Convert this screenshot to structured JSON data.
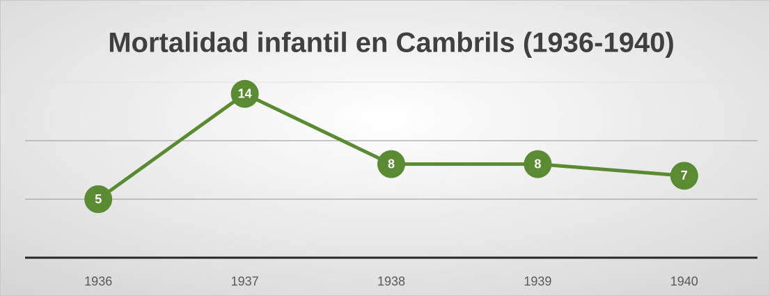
{
  "chart_data": {
    "type": "line",
    "title": "Mortalidad infantil en Cambrils (1936-1940)",
    "categories": [
      "1936",
      "1937",
      "1938",
      "1939",
      "1940"
    ],
    "values": [
      5,
      14,
      8,
      8,
      7
    ],
    "color": "#5a8a32",
    "ylim": [
      0,
      15
    ],
    "yticks": [
      0,
      5,
      10,
      15
    ],
    "grid": true
  }
}
